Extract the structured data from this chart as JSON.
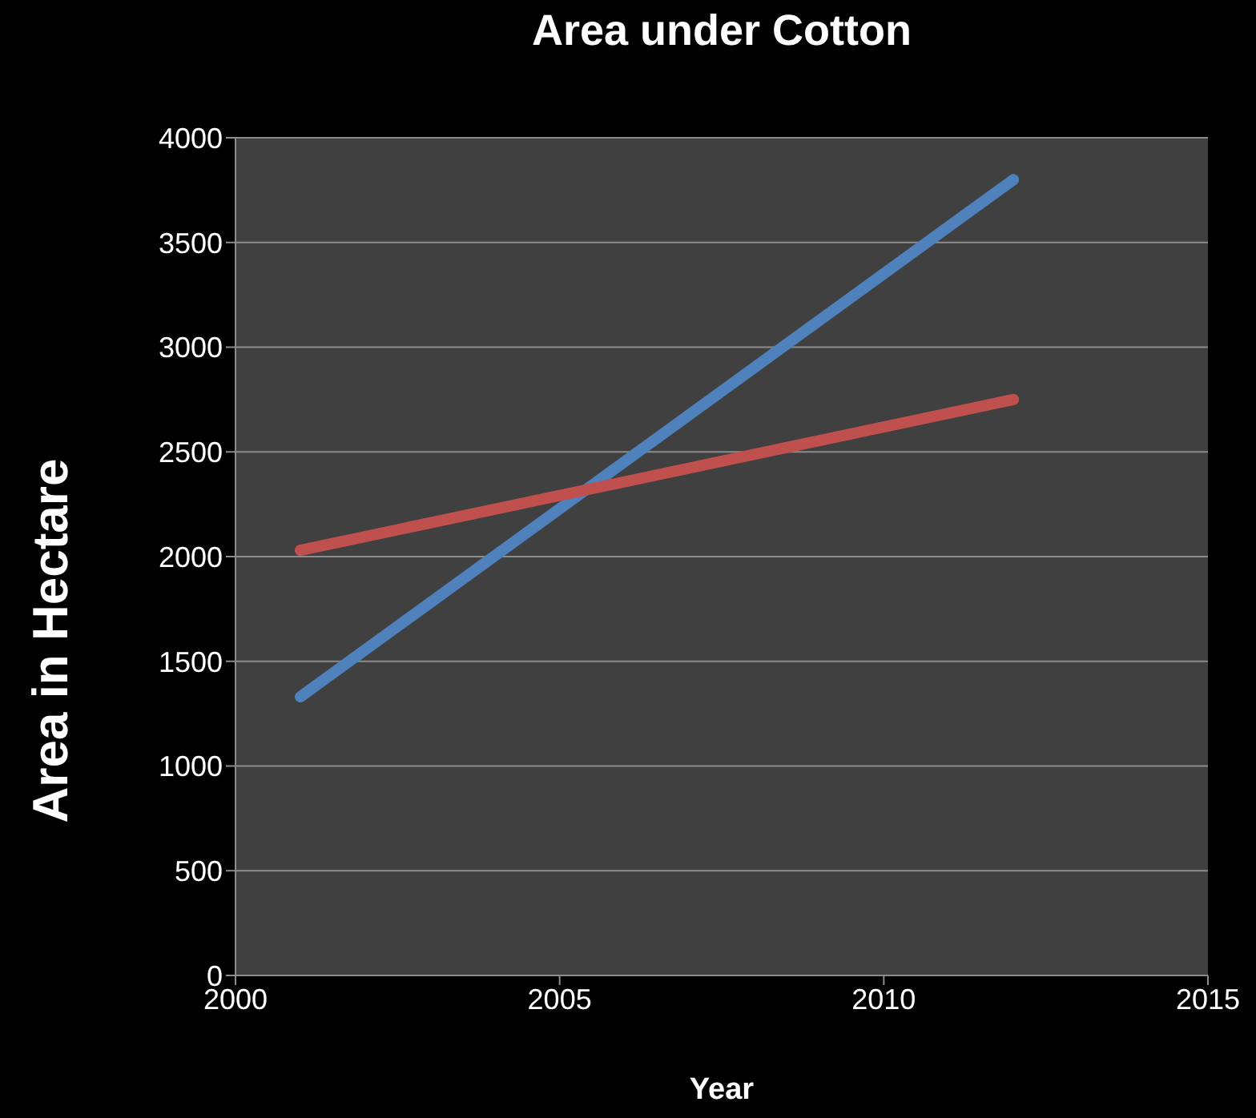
{
  "chart_data": {
    "type": "line",
    "title": "Area under Cotton",
    "xlabel": "Year",
    "ylabel": "Area in Hectare",
    "x": [
      2001,
      2012
    ],
    "series": [
      {
        "color": "#4f81bd",
        "values": [
          1330,
          3800
        ]
      },
      {
        "color": "#c0504d",
        "values": [
          2030,
          2750
        ]
      }
    ],
    "xlim": [
      2000,
      2015
    ],
    "xticks": [
      2000,
      2005,
      2010,
      2015
    ],
    "ylim": [
      0,
      4000
    ],
    "yticks": [
      0,
      500,
      1000,
      1500,
      2000,
      2500,
      3000,
      3500,
      4000
    ],
    "grid": "y",
    "legend": false
  }
}
